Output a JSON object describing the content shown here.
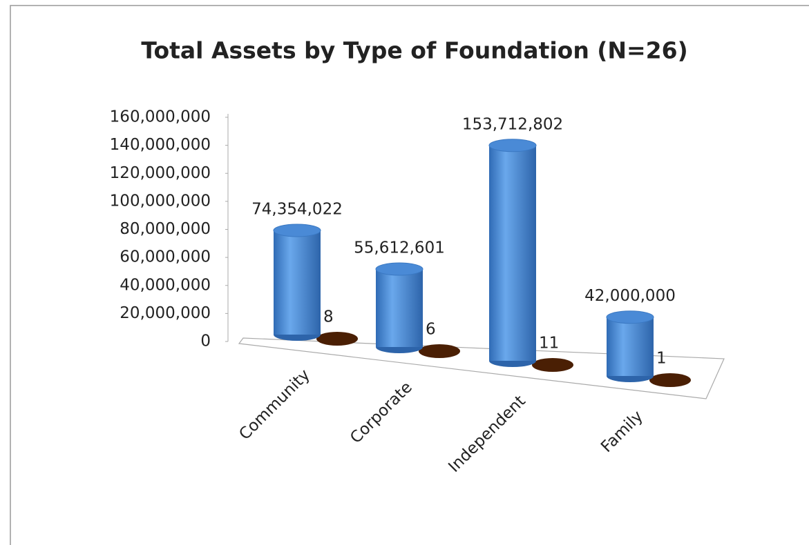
{
  "chart_data": {
    "type": "bar3d",
    "title": "Total Assets by Type of Foundation (N=26)",
    "categories": [
      "Community",
      "Corporate",
      "Independent",
      "Family"
    ],
    "series": [
      {
        "color": "#4a8ad6",
        "values": [
          74354022,
          55612601,
          153712802,
          42000000
        ],
        "value_labels": [
          "74,354,022",
          "55,612,601",
          "153,712,802",
          "42,000,000"
        ]
      },
      {
        "color": "#4a1f04",
        "values": [
          8,
          6,
          11,
          1
        ]
      }
    ],
    "ylim": [
      0,
      160000000
    ],
    "yticks": [
      0,
      {
        "value": 20000000,
        "label": "20,000,000"
      },
      {
        "value": 40000000,
        "label": "40,000,000"
      },
      {
        "value": 60000000,
        "label": "60,000,000"
      },
      {
        "value": 80000000,
        "label": "80,000,000"
      },
      {
        "value": 100000000,
        "label": "100,000,000"
      },
      {
        "value": 120000000,
        "label": "120,000,000"
      },
      {
        "value": 140000000,
        "label": "140,000,000"
      },
      {
        "value": 160000000,
        "label": "160,000,000"
      }
    ]
  }
}
